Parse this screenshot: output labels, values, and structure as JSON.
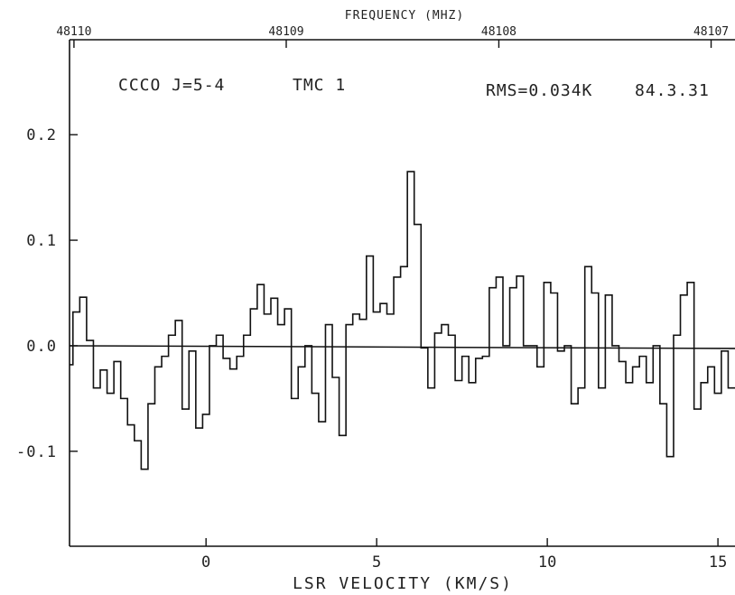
{
  "chart_data": {
    "type": "line",
    "step": true,
    "xlabel": "LSR VELOCITY (KM/S)",
    "ylabel": "",
    "top_axis_label": "FREQUENCY (MHZ)",
    "annotations": {
      "molecule": "CCCO J=5-4",
      "source": "TMC 1",
      "rms": "RMS=0.034K",
      "date": "84.3.31"
    },
    "xlim": [
      -4,
      15.5
    ],
    "ylim": [
      -0.19,
      0.29
    ],
    "x_ticks": [
      0,
      5,
      10,
      15
    ],
    "x_tick_labels": [
      "0",
      "5",
      "10",
      "15"
    ],
    "y_ticks": [
      0.2,
      0.1,
      0.0,
      -0.1
    ],
    "y_tick_labels": [
      "0.2",
      "0.1",
      "0.0",
      "-0.1"
    ],
    "top_ticks": [
      {
        "x": -3.87,
        "label": "48110"
      },
      {
        "x": 2.35,
        "label": "48109"
      },
      {
        "x": 8.58,
        "label": "48108"
      },
      {
        "x": 14.8,
        "label": "48107"
      }
    ],
    "baseline": 0.0,
    "grid": false,
    "series": [
      {
        "x": [
          -4.0,
          -3.8,
          -3.6,
          -3.4,
          -3.2,
          -3.0,
          -2.8,
          -2.6,
          -2.4,
          -2.2,
          -2.0,
          -1.8,
          -1.6,
          -1.4,
          -1.2,
          -1.0,
          -0.8,
          -0.6,
          -0.4,
          -0.2,
          0.0,
          0.2,
          0.4,
          0.6,
          0.8,
          1.0,
          1.2,
          1.4,
          1.6,
          1.8,
          2.0,
          2.2,
          2.4,
          2.6,
          2.8,
          3.0,
          3.2,
          3.4,
          3.6,
          3.8,
          4.0,
          4.2,
          4.4,
          4.6,
          4.8,
          5.0,
          5.2,
          5.4,
          5.6,
          5.8,
          6.0,
          6.2,
          6.4,
          6.6,
          6.8,
          7.0,
          7.2,
          7.4,
          7.6,
          7.8,
          8.0,
          8.2,
          8.4,
          8.6,
          8.8,
          9.0,
          9.2,
          9.4,
          9.6,
          9.8,
          10.0,
          10.2,
          10.4,
          10.6,
          10.8,
          11.0,
          11.2,
          11.4,
          11.6,
          11.8,
          12.0,
          12.2,
          12.4,
          12.6,
          12.8,
          13.0,
          13.2,
          13.4,
          13.6,
          13.8,
          14.0,
          14.2,
          14.4,
          14.6,
          14.8,
          15.0,
          15.2,
          15.4
        ],
        "values": [
          -0.018,
          0.032,
          0.046,
          0.005,
          -0.04,
          -0.023,
          -0.045,
          -0.015,
          -0.05,
          -0.075,
          -0.09,
          -0.117,
          -0.055,
          -0.02,
          -0.01,
          0.01,
          0.024,
          -0.06,
          -0.005,
          -0.078,
          -0.065,
          0.0,
          0.01,
          -0.012,
          -0.022,
          -0.01,
          0.01,
          0.035,
          0.058,
          0.03,
          0.045,
          0.02,
          0.035,
          -0.05,
          -0.02,
          0.0,
          -0.045,
          -0.072,
          0.02,
          -0.03,
          -0.085,
          0.02,
          0.03,
          0.025,
          0.085,
          0.032,
          0.04,
          0.03,
          0.065,
          0.075,
          0.165,
          0.115,
          -0.002,
          -0.04,
          0.012,
          0.02,
          0.01,
          -0.033,
          -0.01,
          -0.035,
          -0.012,
          -0.01,
          0.055,
          0.065,
          0.0,
          0.055,
          0.066,
          0.0,
          0.0,
          -0.02,
          0.06,
          0.05,
          -0.005,
          0.0,
          -0.055,
          -0.04,
          0.075,
          0.05,
          -0.04,
          0.048,
          0.0,
          -0.015,
          -0.035,
          -0.02,
          -0.01,
          -0.035,
          0.0,
          -0.055,
          -0.105,
          0.01,
          0.048,
          0.06,
          -0.06,
          -0.035,
          -0.02,
          -0.045,
          -0.005,
          -0.04
        ]
      }
    ]
  }
}
